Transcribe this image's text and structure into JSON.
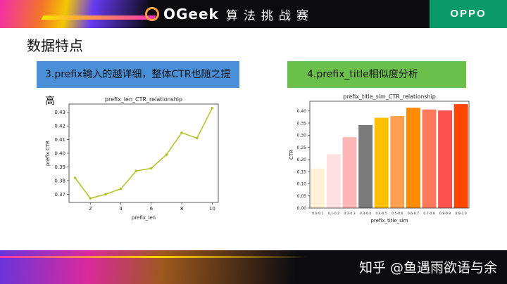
{
  "header": {
    "logo_text": "OGeek",
    "logo_subtitle": "算法挑战赛",
    "brand": "OPPO"
  },
  "slide_title": "数据特点",
  "boxes": {
    "left": "3.prefix输入的越详细，整体CTR也随之提高",
    "right": "4.prefix_title相似度分析"
  },
  "watermark": "知乎 @鱼遇雨欲语与余",
  "colors": {
    "left_box": "#4a90d9",
    "right_box": "#6bbf4b",
    "line": "#b5c42a",
    "header_bg": "#0b0b10",
    "brand_bg": "#0a9a6a"
  },
  "chart_data": [
    {
      "type": "line",
      "title": "prefix_len_CTR_relationship",
      "xlabel": "prefix_len",
      "ylabel": "prefix CTR",
      "x": [
        1,
        2,
        3,
        4,
        5,
        6,
        7,
        8,
        9,
        10
      ],
      "y": [
        0.382,
        0.367,
        0.37,
        0.374,
        0.387,
        0.389,
        0.399,
        0.415,
        0.411,
        0.433
      ],
      "xlim": [
        0.6,
        10.4
      ],
      "ylim": [
        0.364,
        0.436
      ],
      "xticks": [
        2,
        4,
        6,
        8,
        10
      ],
      "yticks": [
        0.37,
        0.38,
        0.39,
        0.4,
        0.41,
        0.42,
        0.43
      ],
      "grid": false,
      "color": "#b5c42a"
    },
    {
      "type": "bar",
      "title": "prefix_title_sim_CTR_relationship",
      "xlabel": "prefix_title_sim",
      "ylabel": "CTR",
      "categories": [
        "0.0-0.1",
        "0.1-0.2",
        "0.2-0.3",
        "0.3-0.4",
        "0.4-0.5",
        "0.5-0.6",
        "0.6-0.7",
        "0.7-0.8",
        "0.8-0.9",
        "0.9-1.0"
      ],
      "values": [
        0.163,
        0.222,
        0.292,
        0.342,
        0.372,
        0.379,
        0.413,
        0.406,
        0.402,
        0.428
      ],
      "ylim": [
        0,
        0.44
      ],
      "yticks": [
        0.0,
        0.05,
        0.1,
        0.15,
        0.2,
        0.25,
        0.3,
        0.35,
        0.4
      ],
      "colors": [
        "#fff0d8",
        "#ffe0e0",
        "#ffb6b6",
        "#7a7a7a",
        "#ffc000",
        "#ffa050",
        "#ff8c00",
        "#ff7a5a",
        "#ff5050",
        "#ff4500"
      ],
      "grid": false
    }
  ]
}
